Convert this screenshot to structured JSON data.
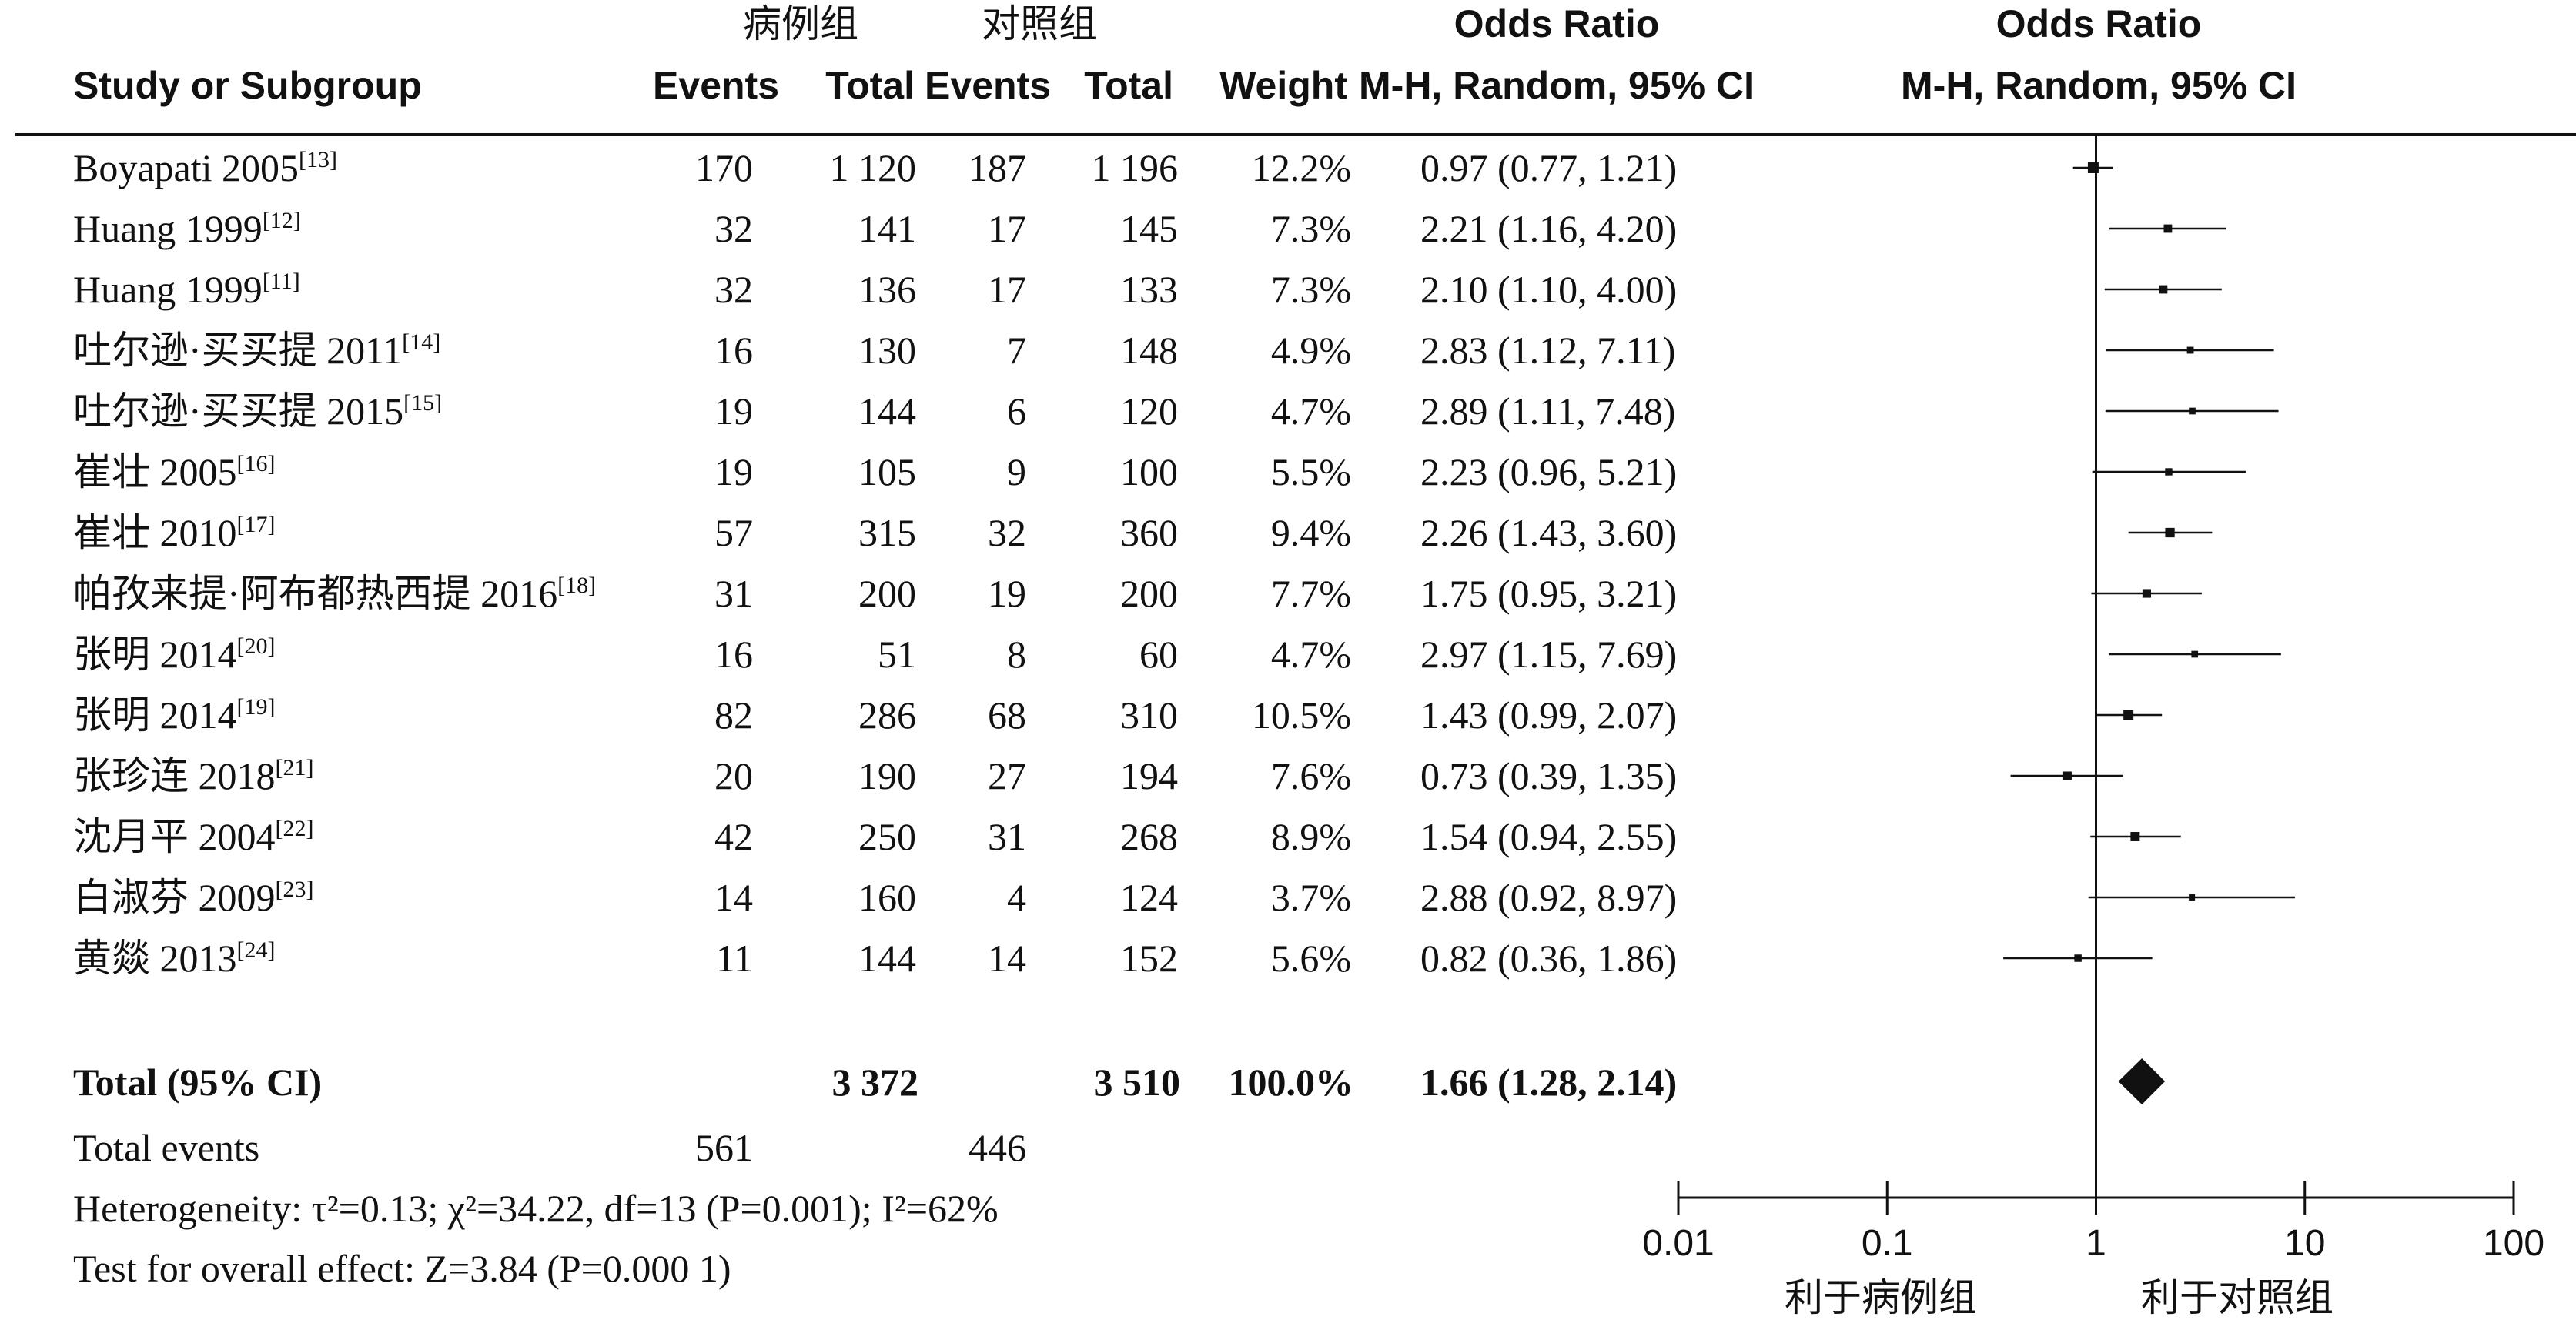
{
  "headers": {
    "case_group": "病例组",
    "control_group": "对照组",
    "odds_ratio_1": "Odds Ratio",
    "odds_ratio_2": "Odds Ratio",
    "study": "Study or Subgroup",
    "events_case": "Events",
    "total_case": "Total",
    "events_control": "Events",
    "total_control": "Total",
    "weight": "Weight",
    "method_1": "M-H, Random, 95% CI",
    "method_2": "M-H, Random, 95% CI"
  },
  "summary": {
    "total_label": "Total (95% CI)",
    "total_case": "3 372",
    "total_control": "3 510",
    "total_weight": "100.0%",
    "total_ci_text": "1.66 (1.28, 2.14)",
    "events_label": "Total events",
    "events_case": "561",
    "events_control": "446",
    "heterogeneity": "Heterogeneity: τ²=0.13; χ²=34.22, df=13 (P=0.001); I²=62%",
    "overall_effect": "Test for overall effect: Z=3.84 (P=0.000 1)"
  },
  "axis": {
    "ticks": [
      "0.01",
      "0.1",
      "1",
      "10",
      "100"
    ],
    "favours_left": "利于病例组",
    "favours_right": "利于对照组"
  },
  "colors": {
    "ink": "#111111"
  },
  "chart_data": {
    "type": "forest",
    "x_scale": "log",
    "xlim": [
      0.01,
      100
    ],
    "studies": [
      {
        "study": "Boyapati 2005",
        "ref": "[13]",
        "case_events": 170,
        "case_total": "1 120",
        "control_events": 187,
        "control_total": "1 196",
        "weight": "12.2%",
        "or": 0.97,
        "lo": 0.77,
        "hi": 1.21,
        "ci_text": "0.97 (0.77, 1.21)"
      },
      {
        "study": "Huang 1999",
        "ref": "[12]",
        "case_events": 32,
        "case_total": "141",
        "control_events": 17,
        "control_total": "145",
        "weight": "7.3%",
        "or": 2.21,
        "lo": 1.16,
        "hi": 4.2,
        "ci_text": "2.21 (1.16, 4.20)"
      },
      {
        "study": "Huang 1999",
        "ref": "[11]",
        "case_events": 32,
        "case_total": "136",
        "control_events": 17,
        "control_total": "133",
        "weight": "7.3%",
        "or": 2.1,
        "lo": 1.1,
        "hi": 4.0,
        "ci_text": "2.10 (1.10, 4.00)"
      },
      {
        "study": "吐尔逊·买买提 2011",
        "ref": "[14]",
        "case_events": 16,
        "case_total": "130",
        "control_events": 7,
        "control_total": "148",
        "weight": "4.9%",
        "or": 2.83,
        "lo": 1.12,
        "hi": 7.11,
        "ci_text": "2.83 (1.12, 7.11)"
      },
      {
        "study": "吐尔逊·买买提 2015",
        "ref": "[15]",
        "case_events": 19,
        "case_total": "144",
        "control_events": 6,
        "control_total": "120",
        "weight": "4.7%",
        "or": 2.89,
        "lo": 1.11,
        "hi": 7.48,
        "ci_text": "2.89 (1.11, 7.48)"
      },
      {
        "study": "崔壮 2005",
        "ref": "[16]",
        "case_events": 19,
        "case_total": "105",
        "control_events": 9,
        "control_total": "100",
        "weight": "5.5%",
        "or": 2.23,
        "lo": 0.96,
        "hi": 5.21,
        "ci_text": "2.23 (0.96, 5.21)"
      },
      {
        "study": "崔壮 2010",
        "ref": "[17]",
        "case_events": 57,
        "case_total": "315",
        "control_events": 32,
        "control_total": "360",
        "weight": "9.4%",
        "or": 2.26,
        "lo": 1.43,
        "hi": 3.6,
        "ci_text": "2.26 (1.43, 3.60)"
      },
      {
        "study": "帕孜来提·阿布都热西提 2016",
        "ref": "[18]",
        "case_events": 31,
        "case_total": "200",
        "control_events": 19,
        "control_total": "200",
        "weight": "7.7%",
        "or": 1.75,
        "lo": 0.95,
        "hi": 3.21,
        "ci_text": "1.75 (0.95, 3.21)"
      },
      {
        "study": "张明 2014",
        "ref": "[20]",
        "case_events": 16,
        "case_total": "51",
        "control_events": 8,
        "control_total": "60",
        "weight": "4.7%",
        "or": 2.97,
        "lo": 1.15,
        "hi": 7.69,
        "ci_text": "2.97 (1.15, 7.69)"
      },
      {
        "study": "张明 2014",
        "ref": "[19]",
        "case_events": 82,
        "case_total": "286",
        "control_events": 68,
        "control_total": "310",
        "weight": "10.5%",
        "or": 1.43,
        "lo": 0.99,
        "hi": 2.07,
        "ci_text": "1.43 (0.99, 2.07)"
      },
      {
        "study": "张珍连 2018",
        "ref": "[21]",
        "case_events": 20,
        "case_total": "190",
        "control_events": 27,
        "control_total": "194",
        "weight": "7.6%",
        "or": 0.73,
        "lo": 0.39,
        "hi": 1.35,
        "ci_text": "0.73 (0.39, 1.35)"
      },
      {
        "study": "沈月平 2004",
        "ref": "[22]",
        "case_events": 42,
        "case_total": "250",
        "control_events": 31,
        "control_total": "268",
        "weight": "8.9%",
        "or": 1.54,
        "lo": 0.94,
        "hi": 2.55,
        "ci_text": "1.54 (0.94, 2.55)"
      },
      {
        "study": "白淑芬 2009",
        "ref": "[23]",
        "case_events": 14,
        "case_total": "160",
        "control_events": 4,
        "control_total": "124",
        "weight": "3.7%",
        "or": 2.88,
        "lo": 0.92,
        "hi": 8.97,
        "ci_text": "2.88 (0.92, 8.97)"
      },
      {
        "study": "黄燚 2013",
        "ref": "[24]",
        "case_events": 11,
        "case_total": "144",
        "control_events": 14,
        "control_total": "152",
        "weight": "5.6%",
        "or": 0.82,
        "lo": 0.36,
        "hi": 1.86,
        "ci_text": "0.82 (0.36, 1.86)"
      }
    ],
    "pooled": {
      "or": 1.66,
      "lo": 1.28,
      "hi": 2.14
    }
  }
}
